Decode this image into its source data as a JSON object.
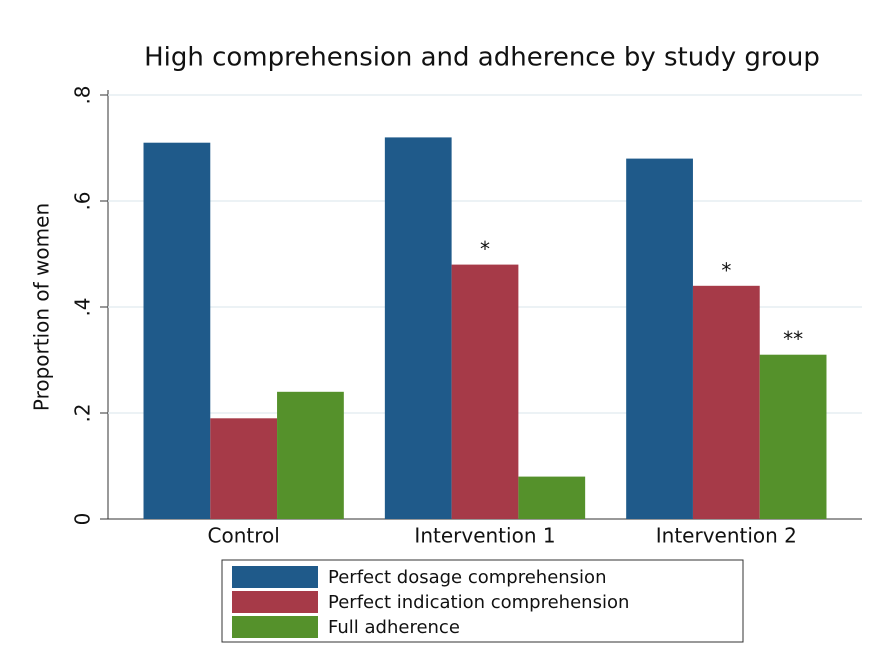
{
  "chart_data": {
    "type": "bar",
    "title": "High comprehension and adherence by study group",
    "y_label": "Proportion of women",
    "categories": [
      "Control",
      "Intervention 1",
      "Intervention 2"
    ],
    "series": [
      {
        "name": "Perfect dosage comprehension",
        "color": "#1f5a8a",
        "values": [
          0.71,
          0.72,
          0.68
        ]
      },
      {
        "name": "Perfect indication comprehension",
        "color": "#a63a48",
        "values": [
          0.19,
          0.48,
          0.44
        ],
        "markers": [
          null,
          "*",
          "*"
        ]
      },
      {
        "name": "Full adherence",
        "color": "#55912b",
        "values": [
          0.24,
          0.08,
          0.31
        ],
        "markers": [
          null,
          null,
          "**"
        ]
      }
    ],
    "ylim": [
      0,
      0.8
    ],
    "yticks": [
      0,
      {
        "value": 0.2,
        "label": ".2"
      },
      {
        "value": 0.4,
        "label": ".4"
      },
      {
        "value": 0.6,
        "label": ".6"
      },
      {
        "value": 0.8,
        "label": ".8"
      }
    ],
    "grid": true,
    "legend": "bottom"
  }
}
